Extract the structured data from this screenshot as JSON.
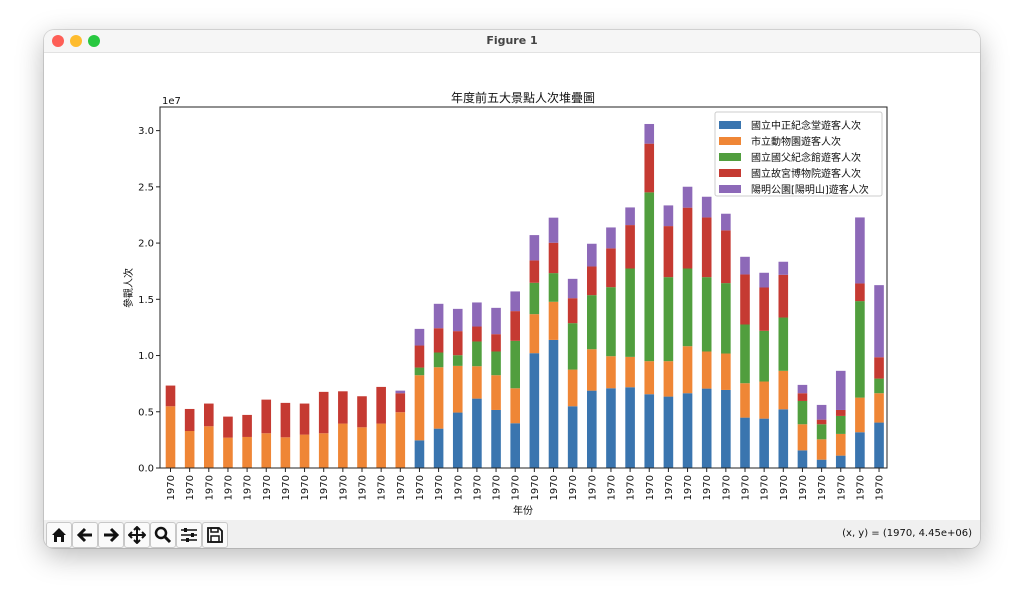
{
  "window": {
    "title": "Figure 1"
  },
  "toolbar": {
    "buttons": [
      "home-icon",
      "back-icon",
      "forward-icon",
      "pan-icon",
      "zoom-icon",
      "configure-subplots-icon",
      "save-icon"
    ],
    "coords": "(x, y) = (1970, 4.45e+06)"
  },
  "chart_data": {
    "type": "bar",
    "stacked": true,
    "title": "年度前五大景點人次堆疊圖",
    "xlabel": "年份",
    "ylabel": "參觀人次",
    "offset_label": "1e7",
    "values_scale": 1000000,
    "ylim": [
      0,
      32100000
    ],
    "yticks": [
      "0.0",
      "0.5",
      "1.0",
      "1.5",
      "2.0",
      "2.5",
      "3.0"
    ],
    "ytick_values": [
      0,
      0.5,
      1.0,
      1.5,
      2.0,
      2.5,
      3.0
    ],
    "legend_position": "upper-right",
    "categories": [
      "1970",
      "1970",
      "1970",
      "1970",
      "1970",
      "1970",
      "1970",
      "1970",
      "1970",
      "1970",
      "1970",
      "1970",
      "1970",
      "1970",
      "1970",
      "1970",
      "1970",
      "1970",
      "1970",
      "1970",
      "1970",
      "1970",
      "1970",
      "1970",
      "1970",
      "1970",
      "1970",
      "1970",
      "1970",
      "1970",
      "1970",
      "1970",
      "1970",
      "1970",
      "1970",
      "1970",
      "1970",
      "1970"
    ],
    "series": [
      {
        "name": "國立中正紀念堂遊客人次",
        "color": "#3a75af",
        "values": [
          0,
          0,
          0,
          0,
          0,
          0,
          0,
          0,
          0,
          0,
          0,
          0,
          0,
          2.46,
          3.5,
          4.93,
          6.17,
          5.16,
          3.98,
          10.21,
          11.39,
          5.49,
          6.88,
          7.09,
          7.18,
          6.56,
          6.35,
          6.65,
          7.06,
          6.94,
          4.48,
          4.39,
          5.22,
          1.57,
          0.74,
          1.1,
          3.18,
          4.04
        ]
      },
      {
        "name": "市立動物園遊客人次",
        "color": "#ef8636",
        "values": [
          5.49,
          3.29,
          3.71,
          2.7,
          2.76,
          3.09,
          2.73,
          2.97,
          3.09,
          3.95,
          3.62,
          3.95,
          4.96,
          5.79,
          5.46,
          4.15,
          2.88,
          3.09,
          3.11,
          3.47,
          3.39,
          3.26,
          3.68,
          2.85,
          2.7,
          2.94,
          3.15,
          4.18,
          3.3,
          3.24,
          3.06,
          3.3,
          3.42,
          2.32,
          1.81,
          1.93,
          3.08,
          2.61
        ]
      },
      {
        "name": "國立國父紀念館遊客人次",
        "color": "#519e3e",
        "values": [
          0,
          0,
          0,
          0,
          0,
          0,
          0,
          0,
          0,
          0,
          0,
          0,
          0,
          0.68,
          1.31,
          0.95,
          2.2,
          2.11,
          4.22,
          2.79,
          2.55,
          4.13,
          4.81,
          6.14,
          7.86,
          15.01,
          7.47,
          6.91,
          6.61,
          6.26,
          5.22,
          4.51,
          4.74,
          2.07,
          1.34,
          1.6,
          8.58,
          1.3
        ]
      },
      {
        "name": "國立故宮博物院遊客人次",
        "color": "#c53a32",
        "values": [
          1.84,
          1.96,
          2.02,
          1.87,
          1.96,
          2.99,
          3.06,
          2.76,
          3.68,
          2.87,
          2.76,
          3.26,
          1.69,
          1.96,
          2.16,
          2.14,
          1.33,
          1.54,
          2.64,
          1.99,
          2.7,
          2.22,
          2.55,
          3.45,
          3.86,
          4.33,
          4.54,
          5.41,
          5.31,
          4.69,
          4.45,
          3.85,
          3.8,
          0.69,
          0.41,
          0.53,
          1.57,
          1.9
        ]
      },
      {
        "name": "陽明公園[陽明山]遊客人次",
        "color": "#8d69b8",
        "values": [
          0,
          0,
          0,
          0,
          0,
          0,
          0,
          0,
          0,
          0,
          0,
          0,
          0.23,
          1.48,
          2.17,
          1.98,
          2.14,
          2.34,
          1.75,
          2.25,
          2.23,
          1.72,
          2.02,
          1.86,
          1.57,
          1.75,
          1.84,
          1.86,
          1.84,
          1.48,
          1.57,
          1.31,
          1.16,
          0.74,
          1.31,
          3.48,
          5.87,
          6.41
        ]
      }
    ]
  }
}
